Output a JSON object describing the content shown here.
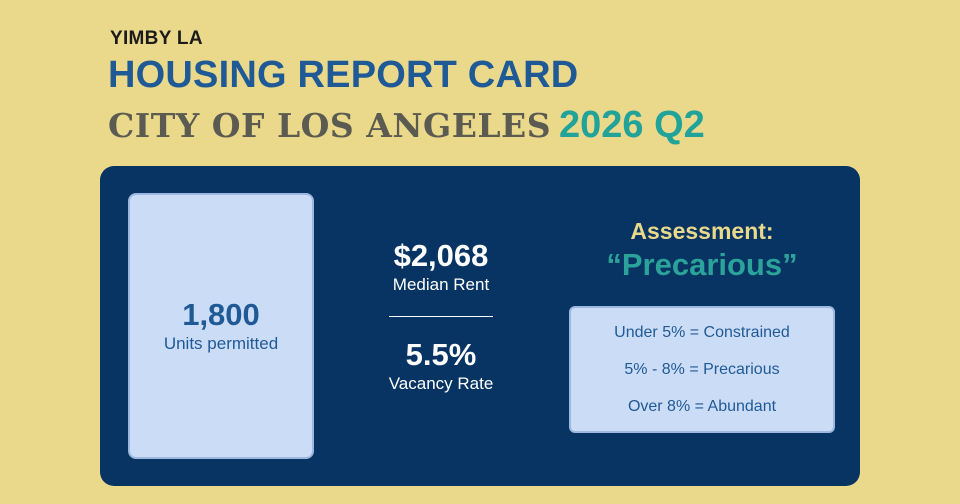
{
  "header": {
    "org": "YIMBY LA",
    "title": "HOUSING REPORT CARD",
    "city": "CITY OF LOS ANGELES",
    "period": "2026 Q2"
  },
  "units": {
    "value": "1,800",
    "label": "Units permitted"
  },
  "stats": [
    {
      "value": "$2,068",
      "label": "Median Rent"
    },
    {
      "value": "5.5%",
      "label": "Vacancy Rate"
    }
  ],
  "assessment": {
    "label": "Assessment:",
    "value": "“Precarious”"
  },
  "scale": [
    "Under 5% = Constrained",
    "5% - 8% = Precarious",
    "Over 8% = Abundant"
  ],
  "colors": {
    "background": "#ead98b",
    "panel": "#073462",
    "title_blue": "#1f5a96",
    "teal_accent": "#2ba39a",
    "card_fill": "#cbdcf7"
  }
}
